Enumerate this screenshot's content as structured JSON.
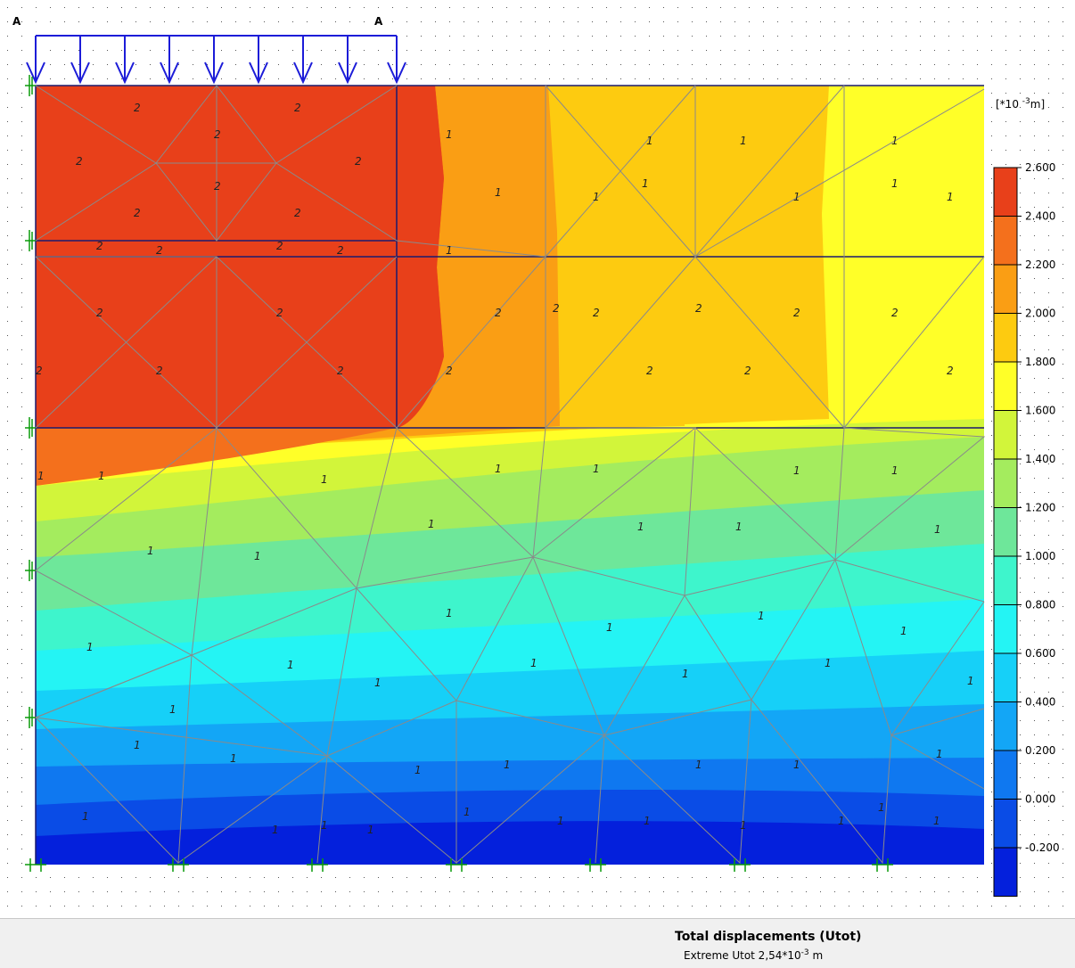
{
  "markers": {
    "left": "A",
    "right": "A"
  },
  "legend": {
    "unit": "[*10 -3 m]",
    "levels": [
      "2.600",
      "2.400",
      "2.200",
      "2.000",
      "1.800",
      "1.600",
      "1.400",
      "1.200",
      "1.000",
      "0.800",
      "0.600",
      "0.400",
      "0.200",
      "0.000",
      "-0.200"
    ],
    "colors": [
      "#e8401a",
      "#f4701c",
      "#fa9e14",
      "#fdcb10",
      "#ffff28",
      "#d2f53a",
      "#a4ec5e",
      "#6ee79a",
      "#3ef5cc",
      "#24f4f4",
      "#16d0f8",
      "#13a6f6",
      "#0f78f0",
      "#0a4ce6",
      "#0420dc"
    ]
  },
  "elements": {
    "row1": [
      "2",
      "2",
      "2",
      "2",
      "2",
      "2",
      "2",
      "2",
      "1",
      "1",
      "1",
      "1",
      "1",
      "1",
      "1",
      "1",
      "1",
      "1"
    ],
    "row2": [
      "2",
      "2",
      "2",
      "2",
      "1",
      "2",
      "2",
      "2",
      "2",
      "2",
      "2",
      "2",
      "2",
      "2",
      "2",
      "2",
      "2",
      "2",
      "2",
      "2"
    ],
    "row3": [
      "1",
      "1",
      "1",
      "1",
      "1",
      "1",
      "1",
      "1",
      "1",
      "1",
      "1",
      "1",
      "1",
      "1",
      "1",
      "1",
      "1",
      "1",
      "1"
    ],
    "row4": [
      "1",
      "1",
      "1",
      "1",
      "1",
      "1",
      "1",
      "1",
      "1",
      "1",
      "1",
      "1",
      "1",
      "1",
      "1",
      "1",
      "1",
      "1",
      "1",
      "1",
      "1",
      "1",
      "1",
      "1"
    ]
  },
  "caption": {
    "title": "Total displacements (Utot)",
    "subtitle_prefix": "Extreme Utot 2,54*10",
    "subtitle_exp": "-3",
    "subtitle_unit": "m"
  }
}
